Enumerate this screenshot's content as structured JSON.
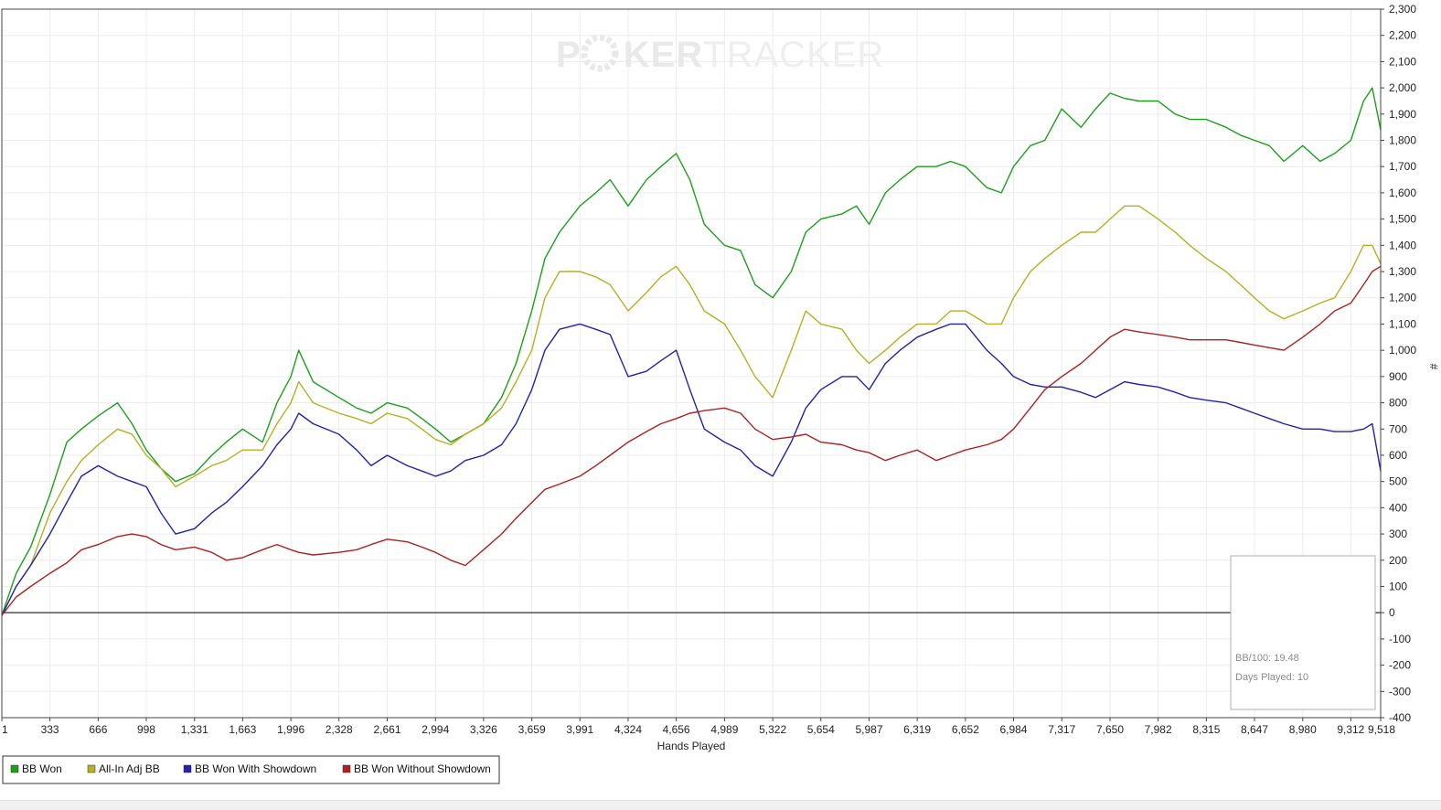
{
  "watermark": {
    "left": "P",
    "mid": "KER",
    "right": "TRACKER"
  },
  "stats": {
    "bb100": "BB/100: 19.48",
    "days_played": "Days Played: 10"
  },
  "chart_data": {
    "type": "line",
    "title": "",
    "xlabel": "Hands Played",
    "ylabel": "#",
    "xlim": [
      1,
      9518
    ],
    "ylim": [
      -400,
      2300
    ],
    "x_ticks": [
      1,
      333,
      666,
      998,
      1331,
      1663,
      1996,
      2328,
      2661,
      2994,
      3326,
      3659,
      3991,
      4324,
      4656,
      4989,
      5322,
      5654,
      5987,
      6319,
      6652,
      6984,
      7317,
      7650,
      7982,
      8315,
      8647,
      8980,
      9312,
      9518
    ],
    "x_tick_labels": [
      "1",
      "333",
      "666",
      "998",
      "1,331",
      "1,663",
      "1,996",
      "2,328",
      "2,661",
      "2,994",
      "3,326",
      "3,659",
      "3,991",
      "4,324",
      "4,656",
      "4,989",
      "5,322",
      "5,654",
      "5,987",
      "6,319",
      "6,652",
      "6,984",
      "7,317",
      "7,650",
      "7,982",
      "8,315",
      "8,647",
      "8,980",
      "9,312",
      "9,518"
    ],
    "y_ticks": [
      -400,
      -300,
      -200,
      -100,
      0,
      100,
      200,
      300,
      400,
      500,
      600,
      700,
      800,
      900,
      1000,
      1100,
      1200,
      1300,
      1400,
      1500,
      1600,
      1700,
      1800,
      1900,
      2000,
      2100,
      2200,
      2300
    ],
    "y_tick_labels": [
      "-400",
      "-300",
      "-200",
      "-100",
      "0",
      "100",
      "200",
      "300",
      "400",
      "500",
      "600",
      "700",
      "800",
      "900",
      "1,000",
      "1,100",
      "1,200",
      "1,300",
      "1,400",
      "1,500",
      "1,600",
      "1,700",
      "1,800",
      "1,900",
      "2,000",
      "2,100",
      "2,200",
      "2,300"
    ],
    "grid": true,
    "legend_position": "bottom-left",
    "x": [
      1,
      100,
      200,
      333,
      450,
      550,
      666,
      800,
      900,
      998,
      1100,
      1200,
      1331,
      1450,
      1550,
      1663,
      1800,
      1900,
      1996,
      2050,
      2150,
      2328,
      2450,
      2550,
      2661,
      2800,
      2900,
      2994,
      3100,
      3200,
      3326,
      3450,
      3550,
      3659,
      3750,
      3850,
      3991,
      4100,
      4200,
      4324,
      4450,
      4550,
      4656,
      4750,
      4850,
      4989,
      5100,
      5200,
      5322,
      5450,
      5550,
      5654,
      5800,
      5900,
      5987,
      6100,
      6200,
      6319,
      6450,
      6550,
      6652,
      6800,
      6900,
      6984,
      7100,
      7200,
      7317,
      7450,
      7550,
      7650,
      7750,
      7850,
      7982,
      8100,
      8200,
      8315,
      8450,
      8550,
      8647,
      8750,
      8850,
      8980,
      9100,
      9200,
      9312,
      9400,
      9460,
      9518
    ],
    "series": [
      {
        "name": "BB Won",
        "color": "#1ca01c",
        "values": [
          -10,
          150,
          250,
          450,
          650,
          700,
          750,
          800,
          720,
          620,
          550,
          500,
          530,
          600,
          650,
          700,
          650,
          800,
          900,
          1000,
          880,
          820,
          780,
          760,
          800,
          780,
          740,
          700,
          650,
          680,
          720,
          820,
          950,
          1150,
          1350,
          1450,
          1550,
          1600,
          1650,
          1550,
          1650,
          1700,
          1750,
          1650,
          1480,
          1400,
          1380,
          1250,
          1200,
          1300,
          1450,
          1500,
          1520,
          1550,
          1480,
          1600,
          1650,
          1700,
          1700,
          1720,
          1700,
          1620,
          1600,
          1700,
          1780,
          1800,
          1920,
          1850,
          1920,
          1980,
          1960,
          1950,
          1950,
          1900,
          1880,
          1880,
          1850,
          1820,
          1800,
          1780,
          1720,
          1780,
          1720,
          1750,
          1800,
          1950,
          2000,
          1840
        ]
      },
      {
        "name": "All-In Adj BB",
        "color": "#b5b024",
        "values": [
          -10,
          100,
          180,
          380,
          500,
          580,
          640,
          700,
          680,
          600,
          550,
          480,
          520,
          560,
          580,
          620,
          620,
          720,
          800,
          880,
          800,
          760,
          740,
          720,
          760,
          740,
          700,
          660,
          640,
          680,
          720,
          780,
          880,
          1000,
          1200,
          1300,
          1300,
          1280,
          1250,
          1150,
          1220,
          1280,
          1320,
          1250,
          1150,
          1100,
          1000,
          900,
          820,
          1000,
          1150,
          1100,
          1080,
          1000,
          950,
          1000,
          1050,
          1100,
          1100,
          1150,
          1150,
          1100,
          1100,
          1200,
          1300,
          1350,
          1400,
          1450,
          1450,
          1500,
          1550,
          1550,
          1500,
          1450,
          1400,
          1350,
          1300,
          1250,
          1200,
          1150,
          1120,
          1150,
          1180,
          1200,
          1300,
          1400,
          1400,
          1330
        ]
      },
      {
        "name": "BB Won With Showdown",
        "color": "#2222aa",
        "values": [
          -10,
          100,
          180,
          300,
          420,
          520,
          560,
          520,
          500,
          480,
          380,
          300,
          320,
          380,
          420,
          480,
          560,
          640,
          700,
          760,
          720,
          680,
          620,
          560,
          600,
          560,
          540,
          520,
          540,
          580,
          600,
          640,
          720,
          850,
          1000,
          1080,
          1100,
          1080,
          1060,
          900,
          920,
          960,
          1000,
          850,
          700,
          650,
          620,
          560,
          520,
          650,
          780,
          850,
          900,
          900,
          850,
          950,
          1000,
          1050,
          1080,
          1100,
          1100,
          1000,
          950,
          900,
          870,
          860,
          860,
          840,
          820,
          850,
          880,
          870,
          860,
          840,
          820,
          810,
          800,
          780,
          760,
          740,
          720,
          700,
          700,
          690,
          690,
          700,
          720,
          540
        ]
      },
      {
        "name": "BB Won Without Showdown",
        "color": "#aa2222",
        "values": [
          -10,
          60,
          100,
          150,
          190,
          240,
          260,
          290,
          300,
          290,
          260,
          240,
          250,
          230,
          200,
          210,
          240,
          260,
          240,
          230,
          220,
          230,
          240,
          260,
          280,
          270,
          250,
          230,
          200,
          180,
          240,
          300,
          360,
          420,
          470,
          490,
          520,
          560,
          600,
          650,
          690,
          720,
          740,
          760,
          770,
          780,
          760,
          700,
          660,
          670,
          680,
          650,
          640,
          620,
          610,
          580,
          600,
          620,
          580,
          600,
          620,
          640,
          660,
          700,
          780,
          850,
          900,
          950,
          1000,
          1050,
          1080,
          1070,
          1060,
          1050,
          1040,
          1040,
          1040,
          1030,
          1020,
          1010,
          1000,
          1050,
          1100,
          1150,
          1180,
          1250,
          1300,
          1320
        ]
      }
    ]
  }
}
